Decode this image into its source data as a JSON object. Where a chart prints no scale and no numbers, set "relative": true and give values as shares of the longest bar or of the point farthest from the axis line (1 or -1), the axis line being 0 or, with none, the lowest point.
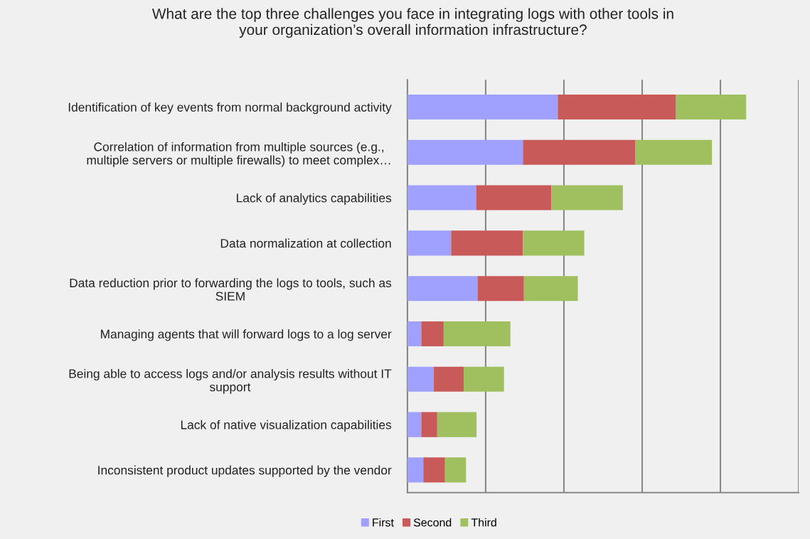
{
  "chart_data": {
    "type": "bar",
    "orientation": "horizontal",
    "stacked": true,
    "relative": true,
    "title": "What are the top three challenges you face in integrating logs with other tools in\nyour organization’s overall information infrastructure?",
    "categories": [
      "Identification of key events from normal background activity",
      "Correlation of information from multiple sources (e.g.,\nmultiple servers or multiple firewalls) to meet complex…",
      "Lack of analytics capabilities",
      "Data normalization at collection",
      "Data reduction prior to forwarding the logs to tools, such as\nSIEM",
      "Managing agents that will forward logs to a log server",
      "Being able to access logs and/or analysis results without IT\nsupport",
      "Lack of native visualization capabilities",
      "Inconsistent product updates supported by the vendor"
    ],
    "series": [
      {
        "name": "First",
        "color": "#a0a0ff",
        "values": [
          0.444,
          0.341,
          0.203,
          0.129,
          0.207,
          0.041,
          0.078,
          0.041,
          0.047
        ]
      },
      {
        "name": "Second",
        "color": "#c85a5a",
        "values": [
          0.349,
          0.331,
          0.222,
          0.212,
          0.137,
          0.066,
          0.088,
          0.047,
          0.064
        ]
      },
      {
        "name": "Third",
        "color": "#a0c060",
        "values": [
          0.207,
          0.227,
          0.211,
          0.181,
          0.159,
          0.197,
          0.119,
          0.116,
          0.062
        ]
      }
    ],
    "grid": "x",
    "legend": "bottom"
  }
}
